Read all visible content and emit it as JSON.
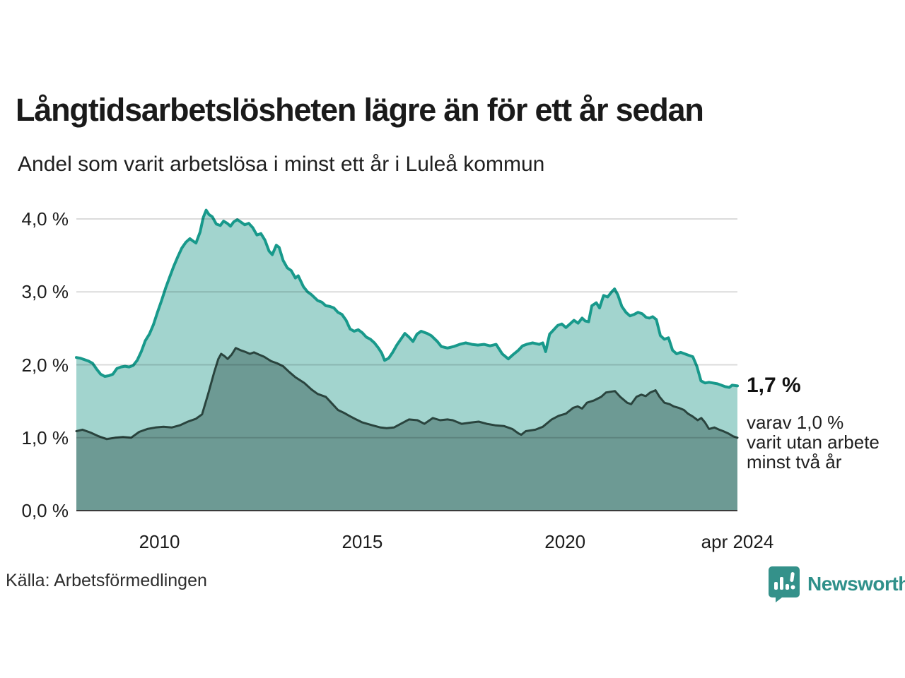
{
  "header": {
    "title": "Långtidsarbetslösheten lägre än för ett år sedan",
    "subtitle": "Andel som varit arbetslösa i minst ett år i Luleå kommun"
  },
  "annotation": {
    "value_label": "1,7 %",
    "detail": "varav 1,0 %\nvarit utan arbete\nminst två år"
  },
  "footer": {
    "source": "Källa: Arbetsförmedlingen",
    "brand": "Newsworthy"
  },
  "colors": {
    "line_total": "#18998b",
    "fill_total": "#a2d4ce",
    "line_two_years": "#2a443e",
    "fill_two_years": "#6d9a94",
    "gridline_overlay": "rgba(0,0,0,0.14)",
    "baseline": "#3b3b3b",
    "brand_teal": "#34918a"
  },
  "chart_data": {
    "type": "area",
    "title": "Långtidsarbetslösheten lägre än för ett år sedan",
    "subtitle": "Andel som varit arbetslösa i minst ett år i Luleå kommun",
    "unit": "%",
    "grid": true,
    "x_domain": [
      2007.95,
      2024.25
    ],
    "ylim": [
      0,
      4.3
    ],
    "y_ticks": [
      {
        "value": 0,
        "label": "0,0 %"
      },
      {
        "value": 1,
        "label": "1,0 %"
      },
      {
        "value": 2,
        "label": "2,0 %"
      },
      {
        "value": 3,
        "label": "3,0 %"
      },
      {
        "value": 4,
        "label": "4,0 %"
      }
    ],
    "x_ticks": [
      {
        "value": 2010,
        "label": "2010"
      },
      {
        "value": 2015,
        "label": "2015"
      },
      {
        "value": 2020,
        "label": "2020"
      },
      {
        "value": 2024.25,
        "label": "apr 2024"
      }
    ],
    "series": [
      {
        "name": "Andel som varit arbetslösa minst ett år",
        "line_color": "#18998b",
        "fill_color": "#a2d4ce",
        "line_width": 4,
        "end_value_label": "1,7 %",
        "points": [
          [
            2007.95,
            2.1
          ],
          [
            2008.05,
            2.09
          ],
          [
            2008.15,
            2.07
          ],
          [
            2008.25,
            2.05
          ],
          [
            2008.35,
            2.02
          ],
          [
            2008.45,
            1.94
          ],
          [
            2008.55,
            1.87
          ],
          [
            2008.65,
            1.84
          ],
          [
            2008.75,
            1.85
          ],
          [
            2008.85,
            1.87
          ],
          [
            2008.95,
            1.95
          ],
          [
            2009.05,
            1.97
          ],
          [
            2009.15,
            1.98
          ],
          [
            2009.25,
            1.97
          ],
          [
            2009.35,
            1.99
          ],
          [
            2009.45,
            2.06
          ],
          [
            2009.55,
            2.18
          ],
          [
            2009.65,
            2.33
          ],
          [
            2009.75,
            2.42
          ],
          [
            2009.85,
            2.55
          ],
          [
            2009.95,
            2.72
          ],
          [
            2010.05,
            2.88
          ],
          [
            2010.15,
            3.05
          ],
          [
            2010.25,
            3.2
          ],
          [
            2010.35,
            3.35
          ],
          [
            2010.45,
            3.48
          ],
          [
            2010.55,
            3.6
          ],
          [
            2010.65,
            3.68
          ],
          [
            2010.75,
            3.73
          ],
          [
            2010.82,
            3.7
          ],
          [
            2010.9,
            3.67
          ],
          [
            2011.0,
            3.82
          ],
          [
            2011.08,
            4.02
          ],
          [
            2011.15,
            4.12
          ],
          [
            2011.22,
            4.06
          ],
          [
            2011.3,
            4.03
          ],
          [
            2011.4,
            3.93
          ],
          [
            2011.5,
            3.91
          ],
          [
            2011.58,
            3.97
          ],
          [
            2011.67,
            3.94
          ],
          [
            2011.75,
            3.9
          ],
          [
            2011.83,
            3.96
          ],
          [
            2011.92,
            3.99
          ],
          [
            2012.0,
            3.96
          ],
          [
            2012.1,
            3.92
          ],
          [
            2012.2,
            3.94
          ],
          [
            2012.3,
            3.88
          ],
          [
            2012.4,
            3.78
          ],
          [
            2012.5,
            3.8
          ],
          [
            2012.6,
            3.71
          ],
          [
            2012.7,
            3.56
          ],
          [
            2012.78,
            3.51
          ],
          [
            2012.88,
            3.64
          ],
          [
            2012.95,
            3.61
          ],
          [
            2013.05,
            3.43
          ],
          [
            2013.15,
            3.33
          ],
          [
            2013.25,
            3.29
          ],
          [
            2013.35,
            3.19
          ],
          [
            2013.42,
            3.22
          ],
          [
            2013.55,
            3.07
          ],
          [
            2013.65,
            3.0
          ],
          [
            2013.75,
            2.96
          ],
          [
            2013.9,
            2.88
          ],
          [
            2014.0,
            2.86
          ],
          [
            2014.1,
            2.81
          ],
          [
            2014.2,
            2.8
          ],
          [
            2014.3,
            2.78
          ],
          [
            2014.4,
            2.72
          ],
          [
            2014.5,
            2.69
          ],
          [
            2014.6,
            2.61
          ],
          [
            2014.7,
            2.49
          ],
          [
            2014.8,
            2.46
          ],
          [
            2014.9,
            2.48
          ],
          [
            2015.0,
            2.44
          ],
          [
            2015.1,
            2.38
          ],
          [
            2015.2,
            2.35
          ],
          [
            2015.3,
            2.3
          ],
          [
            2015.4,
            2.23
          ],
          [
            2015.48,
            2.16
          ],
          [
            2015.55,
            2.06
          ],
          [
            2015.65,
            2.09
          ],
          [
            2015.75,
            2.17
          ],
          [
            2015.85,
            2.27
          ],
          [
            2015.95,
            2.35
          ],
          [
            2016.05,
            2.43
          ],
          [
            2016.15,
            2.38
          ],
          [
            2016.25,
            2.32
          ],
          [
            2016.35,
            2.42
          ],
          [
            2016.45,
            2.46
          ],
          [
            2016.6,
            2.43
          ],
          [
            2016.7,
            2.4
          ],
          [
            2016.85,
            2.32
          ],
          [
            2016.95,
            2.25
          ],
          [
            2017.1,
            2.23
          ],
          [
            2017.25,
            2.25
          ],
          [
            2017.4,
            2.28
          ],
          [
            2017.55,
            2.3
          ],
          [
            2017.7,
            2.28
          ],
          [
            2017.85,
            2.27
          ],
          [
            2018.0,
            2.28
          ],
          [
            2018.15,
            2.26
          ],
          [
            2018.3,
            2.28
          ],
          [
            2018.45,
            2.15
          ],
          [
            2018.6,
            2.08
          ],
          [
            2018.72,
            2.14
          ],
          [
            2018.85,
            2.2
          ],
          [
            2018.95,
            2.26
          ],
          [
            2019.05,
            2.28
          ],
          [
            2019.2,
            2.3
          ],
          [
            2019.36,
            2.28
          ],
          [
            2019.45,
            2.3
          ],
          [
            2019.52,
            2.18
          ],
          [
            2019.62,
            2.42
          ],
          [
            2019.72,
            2.48
          ],
          [
            2019.82,
            2.54
          ],
          [
            2019.92,
            2.56
          ],
          [
            2020.02,
            2.51
          ],
          [
            2020.12,
            2.56
          ],
          [
            2020.22,
            2.61
          ],
          [
            2020.32,
            2.57
          ],
          [
            2020.42,
            2.64
          ],
          [
            2020.5,
            2.6
          ],
          [
            2020.58,
            2.59
          ],
          [
            2020.66,
            2.81
          ],
          [
            2020.77,
            2.85
          ],
          [
            2020.85,
            2.78
          ],
          [
            2020.95,
            2.95
          ],
          [
            2021.05,
            2.93
          ],
          [
            2021.15,
            3.0
          ],
          [
            2021.22,
            3.04
          ],
          [
            2021.3,
            2.96
          ],
          [
            2021.4,
            2.8
          ],
          [
            2021.5,
            2.72
          ],
          [
            2021.6,
            2.67
          ],
          [
            2021.7,
            2.69
          ],
          [
            2021.8,
            2.72
          ],
          [
            2021.9,
            2.7
          ],
          [
            2022.0,
            2.65
          ],
          [
            2022.08,
            2.64
          ],
          [
            2022.16,
            2.66
          ],
          [
            2022.25,
            2.62
          ],
          [
            2022.35,
            2.4
          ],
          [
            2022.45,
            2.35
          ],
          [
            2022.55,
            2.37
          ],
          [
            2022.65,
            2.2
          ],
          [
            2022.75,
            2.15
          ],
          [
            2022.85,
            2.17
          ],
          [
            2022.95,
            2.15
          ],
          [
            2023.05,
            2.13
          ],
          [
            2023.15,
            2.11
          ],
          [
            2023.25,
            1.98
          ],
          [
            2023.35,
            1.78
          ],
          [
            2023.45,
            1.75
          ],
          [
            2023.55,
            1.76
          ],
          [
            2023.65,
            1.75
          ],
          [
            2023.75,
            1.74
          ],
          [
            2023.85,
            1.72
          ],
          [
            2023.95,
            1.7
          ],
          [
            2024.05,
            1.69
          ],
          [
            2024.12,
            1.72
          ],
          [
            2024.25,
            1.71
          ]
        ]
      },
      {
        "name": "varav arbetslösa minst två år",
        "line_color": "#2a443e",
        "fill_color": "#6d9a94",
        "line_width": 3,
        "end_value_label": "1,0 %",
        "points": [
          [
            2007.95,
            1.09
          ],
          [
            2008.1,
            1.11
          ],
          [
            2008.3,
            1.07
          ],
          [
            2008.5,
            1.02
          ],
          [
            2008.7,
            0.98
          ],
          [
            2008.9,
            1.0
          ],
          [
            2009.1,
            1.01
          ],
          [
            2009.3,
            1.0
          ],
          [
            2009.5,
            1.08
          ],
          [
            2009.7,
            1.12
          ],
          [
            2009.9,
            1.14
          ],
          [
            2010.1,
            1.15
          ],
          [
            2010.3,
            1.14
          ],
          [
            2010.5,
            1.17
          ],
          [
            2010.7,
            1.22
          ],
          [
            2010.9,
            1.26
          ],
          [
            2011.05,
            1.32
          ],
          [
            2011.2,
            1.6
          ],
          [
            2011.35,
            1.9
          ],
          [
            2011.45,
            2.08
          ],
          [
            2011.52,
            2.15
          ],
          [
            2011.6,
            2.12
          ],
          [
            2011.68,
            2.08
          ],
          [
            2011.78,
            2.14
          ],
          [
            2011.88,
            2.23
          ],
          [
            2012.0,
            2.2
          ],
          [
            2012.1,
            2.18
          ],
          [
            2012.23,
            2.15
          ],
          [
            2012.33,
            2.17
          ],
          [
            2012.45,
            2.14
          ],
          [
            2012.58,
            2.11
          ],
          [
            2012.75,
            2.05
          ],
          [
            2012.9,
            2.02
          ],
          [
            2013.05,
            1.98
          ],
          [
            2013.2,
            1.9
          ],
          [
            2013.35,
            1.83
          ],
          [
            2013.57,
            1.75
          ],
          [
            2013.75,
            1.66
          ],
          [
            2013.9,
            1.6
          ],
          [
            2014.1,
            1.56
          ],
          [
            2014.25,
            1.47
          ],
          [
            2014.4,
            1.38
          ],
          [
            2014.55,
            1.34
          ],
          [
            2014.68,
            1.3
          ],
          [
            2014.85,
            1.25
          ],
          [
            2015.0,
            1.21
          ],
          [
            2015.12,
            1.19
          ],
          [
            2015.25,
            1.17
          ],
          [
            2015.45,
            1.14
          ],
          [
            2015.6,
            1.13
          ],
          [
            2015.78,
            1.14
          ],
          [
            2015.95,
            1.19
          ],
          [
            2016.15,
            1.25
          ],
          [
            2016.36,
            1.24
          ],
          [
            2016.53,
            1.19
          ],
          [
            2016.74,
            1.27
          ],
          [
            2016.92,
            1.24
          ],
          [
            2017.1,
            1.25
          ],
          [
            2017.23,
            1.24
          ],
          [
            2017.45,
            1.19
          ],
          [
            2017.7,
            1.21
          ],
          [
            2017.87,
            1.22
          ],
          [
            2018.07,
            1.19
          ],
          [
            2018.28,
            1.17
          ],
          [
            2018.49,
            1.16
          ],
          [
            2018.7,
            1.12
          ],
          [
            2018.85,
            1.06
          ],
          [
            2018.92,
            1.04
          ],
          [
            2019.03,
            1.09
          ],
          [
            2019.27,
            1.11
          ],
          [
            2019.45,
            1.15
          ],
          [
            2019.67,
            1.25
          ],
          [
            2019.84,
            1.3
          ],
          [
            2020.02,
            1.33
          ],
          [
            2020.2,
            1.41
          ],
          [
            2020.31,
            1.43
          ],
          [
            2020.42,
            1.4
          ],
          [
            2020.54,
            1.48
          ],
          [
            2020.71,
            1.51
          ],
          [
            2020.89,
            1.56
          ],
          [
            2021.01,
            1.62
          ],
          [
            2021.23,
            1.64
          ],
          [
            2021.36,
            1.56
          ],
          [
            2021.53,
            1.48
          ],
          [
            2021.63,
            1.46
          ],
          [
            2021.76,
            1.56
          ],
          [
            2021.88,
            1.59
          ],
          [
            2021.99,
            1.57
          ],
          [
            2022.1,
            1.62
          ],
          [
            2022.23,
            1.65
          ],
          [
            2022.33,
            1.56
          ],
          [
            2022.45,
            1.48
          ],
          [
            2022.58,
            1.46
          ],
          [
            2022.68,
            1.43
          ],
          [
            2022.8,
            1.41
          ],
          [
            2022.93,
            1.38
          ],
          [
            2023.03,
            1.33
          ],
          [
            2023.15,
            1.29
          ],
          [
            2023.27,
            1.24
          ],
          [
            2023.36,
            1.27
          ],
          [
            2023.45,
            1.21
          ],
          [
            2023.55,
            1.12
          ],
          [
            2023.68,
            1.14
          ],
          [
            2023.8,
            1.11
          ],
          [
            2023.9,
            1.09
          ],
          [
            2024.02,
            1.06
          ],
          [
            2024.14,
            1.02
          ],
          [
            2024.25,
            1.0
          ]
        ]
      }
    ],
    "legend_position": "none",
    "annotation_right": [
      "1,7 %",
      "varav 1,0 %",
      "varit utan arbete",
      "minst två år"
    ]
  }
}
